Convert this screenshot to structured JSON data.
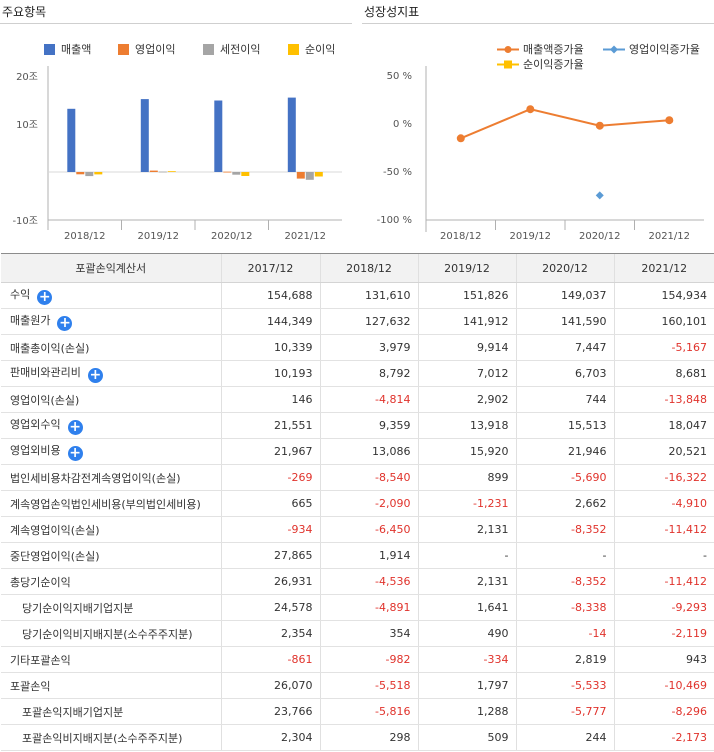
{
  "main_panel": {
    "title": "주요항목",
    "legend": [
      {
        "label": "매출액",
        "color": "#4472c4"
      },
      {
        "label": "영업이익",
        "color": "#ed7d31"
      },
      {
        "label": "세전이익",
        "color": "#a5a5a5"
      },
      {
        "label": "순이익",
        "color": "#ffc000"
      }
    ],
    "y_ticks": [
      "20조",
      "10조",
      "-10조"
    ]
  },
  "growth_panel": {
    "title": "성장성지표",
    "legend": [
      {
        "label": "매출액증가율",
        "color": "#ed7d31"
      },
      {
        "label": "영업이익증가율",
        "color": "#5b9bd5"
      },
      {
        "label": "순이익증가율",
        "color": "#ffc000"
      }
    ],
    "y_ticks": [
      "50 %",
      "0 %",
      "-50 %",
      "-100 %"
    ]
  },
  "chart_data": [
    {
      "type": "bar",
      "title": "주요항목",
      "categories": [
        "2018/12",
        "2019/12",
        "2020/12",
        "2021/12"
      ],
      "series": [
        {
          "name": "매출액",
          "color": "#4472c4",
          "values": [
            13.16,
            15.18,
            14.9,
            15.49
          ]
        },
        {
          "name": "영업이익",
          "color": "#ed7d31",
          "values": [
            -0.48,
            0.29,
            0.07,
            -1.38
          ]
        },
        {
          "name": "세전이익",
          "color": "#a5a5a5",
          "values": [
            -0.85,
            0.09,
            -0.57,
            -1.63
          ]
        },
        {
          "name": "순이익",
          "color": "#ffc000",
          "values": [
            -0.49,
            0.16,
            -0.83,
            -0.93
          ]
        }
      ],
      "ylim": [
        -10,
        20
      ],
      "unit": "조",
      "legend": "top"
    },
    {
      "type": "line",
      "title": "성장성지표",
      "categories": [
        "2018/12",
        "2019/12",
        "2020/12",
        "2021/12"
      ],
      "series": [
        {
          "name": "매출액증가율",
          "color": "#ed7d31",
          "values": [
            -14.9,
            15.4,
            -1.8,
            4.0
          ]
        },
        {
          "name": "영업이익증가율",
          "color": "#5b9bd5",
          "values": [
            null,
            null,
            -74.4,
            null
          ]
        },
        {
          "name": "순이익증가율",
          "color": "#ffc000",
          "values": [
            null,
            null,
            null,
            null
          ]
        }
      ],
      "ylim": [
        -100,
        50
      ],
      "unit": "%",
      "legend": "top"
    }
  ],
  "table": {
    "headers": [
      "포괄손익계산서",
      "2017/12",
      "2018/12",
      "2019/12",
      "2020/12",
      "2021/12"
    ],
    "rows": [
      {
        "label": "수익",
        "plus": true,
        "sub": false,
        "values": [
          "154,688",
          "131,610",
          "151,826",
          "149,037",
          "154,934"
        ]
      },
      {
        "label": "매출원가",
        "plus": true,
        "sub": false,
        "values": [
          "144,349",
          "127,632",
          "141,912",
          "141,590",
          "160,101"
        ]
      },
      {
        "label": "매출총이익(손실)",
        "plus": false,
        "sub": false,
        "values": [
          "10,339",
          "3,979",
          "9,914",
          "7,447",
          "-5,167"
        ]
      },
      {
        "label": "판매비와관리비",
        "plus": true,
        "sub": false,
        "values": [
          "10,193",
          "8,792",
          "7,012",
          "6,703",
          "8,681"
        ]
      },
      {
        "label": "영업이익(손실)",
        "plus": false,
        "sub": false,
        "values": [
          "146",
          "-4,814",
          "2,902",
          "744",
          "-13,848"
        ]
      },
      {
        "label": "영업외수익",
        "plus": true,
        "sub": false,
        "values": [
          "21,551",
          "9,359",
          "13,918",
          "15,513",
          "18,047"
        ]
      },
      {
        "label": "영업외비용",
        "plus": true,
        "sub": false,
        "values": [
          "21,967",
          "13,086",
          "15,920",
          "21,946",
          "20,521"
        ]
      },
      {
        "label": "법인세비용차감전계속영업이익(손실)",
        "plus": false,
        "sub": false,
        "values": [
          "-269",
          "-8,540",
          "899",
          "-5,690",
          "-16,322"
        ]
      },
      {
        "label": "계속영업손익법인세비용(부의법인세비용)",
        "plus": false,
        "sub": false,
        "values": [
          "665",
          "-2,090",
          "-1,231",
          "2,662",
          "-4,910"
        ]
      },
      {
        "label": "계속영업이익(손실)",
        "plus": false,
        "sub": false,
        "values": [
          "-934",
          "-6,450",
          "2,131",
          "-8,352",
          "-11,412"
        ]
      },
      {
        "label": "중단영업이익(손실)",
        "plus": false,
        "sub": false,
        "values": [
          "27,865",
          "1,914",
          "-",
          "-",
          "-"
        ]
      },
      {
        "label": "총당기순이익",
        "plus": false,
        "sub": false,
        "values": [
          "26,931",
          "-4,536",
          "2,131",
          "-8,352",
          "-11,412"
        ]
      },
      {
        "label": "당기순이익지배기업지분",
        "plus": false,
        "sub": true,
        "values": [
          "24,578",
          "-4,891",
          "1,641",
          "-8,338",
          "-9,293"
        ]
      },
      {
        "label": "당기순이익비지배지분(소수주주지분)",
        "plus": false,
        "sub": true,
        "values": [
          "2,354",
          "354",
          "490",
          "-14",
          "-2,119"
        ]
      },
      {
        "label": "기타포괄손익",
        "plus": false,
        "sub": false,
        "values": [
          "-861",
          "-982",
          "-334",
          "2,819",
          "943"
        ]
      },
      {
        "label": "포괄손익",
        "plus": false,
        "sub": false,
        "values": [
          "26,070",
          "-5,518",
          "1,797",
          "-5,533",
          "-10,469"
        ]
      },
      {
        "label": "포괄손익지배기업지분",
        "plus": false,
        "sub": true,
        "values": [
          "23,766",
          "-5,816",
          "1,288",
          "-5,777",
          "-8,296"
        ]
      },
      {
        "label": "포괄손익비지배지분(소수주주지분)",
        "plus": false,
        "sub": true,
        "values": [
          "2,304",
          "298",
          "509",
          "244",
          "-2,173"
        ]
      }
    ]
  }
}
